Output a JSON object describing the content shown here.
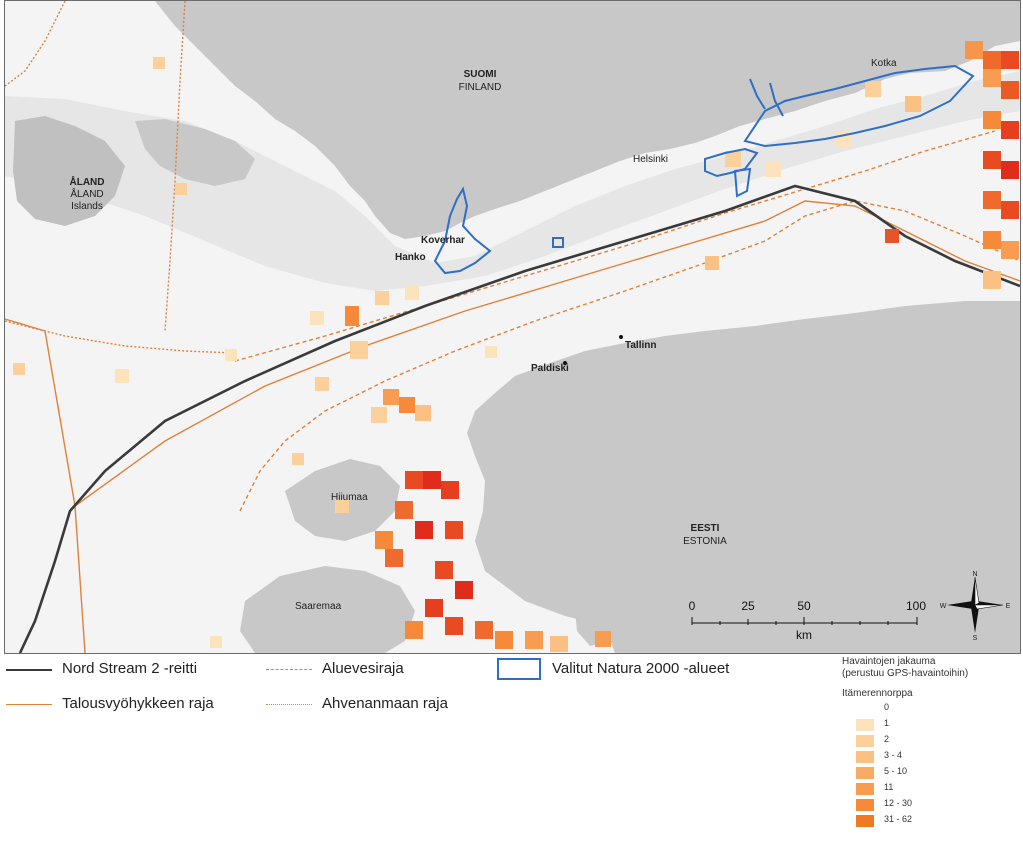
{
  "map": {
    "labels": {
      "suomi": "SUOMI",
      "finland": "FINLAND",
      "aland_sv": "ÅLAND",
      "aland_en": "ÅLAND",
      "aland_islands": "Islands",
      "helsinki": "Helsinki",
      "kotka": "Kotka",
      "koverhar": "Koverhar",
      "hanko": "Hanko",
      "tallinn": "Tallinn",
      "paldiski": "Paldiski",
      "eesti": "EESTI",
      "estonia": "ESTONIA",
      "hiiumaa": "Hiiumaa",
      "saaremaa": "Saaremaa"
    },
    "colors": {
      "sea": "#f4f4f4",
      "land": "#c8c8c8",
      "coast_land": "#b9b9b9",
      "pipeline": "#3a3a3a",
      "eez": "#e0803a",
      "territorial": "#e0803a",
      "aland_border": "#e0803a",
      "natura": "#2e6fc4"
    }
  },
  "scalebar": {
    "ticks": [
      "0",
      "25",
      "50",
      "100"
    ],
    "unit": "km"
  },
  "compass": {
    "n": "N",
    "s": "S",
    "e": "E",
    "w": "W"
  },
  "legend": {
    "nord_stream": "Nord Stream 2 -reitti",
    "eez": "Talousvyöhykkeen raja",
    "territorial": "Aluevesiraja",
    "aland": "Ahvenanmaan raja",
    "natura": "Valitut Natura 2000 -alueet",
    "obs_title_1": "Havaintojen jakauma",
    "obs_title_2": "(perustuu GPS-havaintoihin)",
    "species": "Itämerennorppa",
    "classes": [
      {
        "label": "0",
        "color": "#ffffff"
      },
      {
        "label": "1",
        "color": "#fde3bc"
      },
      {
        "label": "2",
        "color": "#fcd09a"
      },
      {
        "label": "3 - 4",
        "color": "#fbc184"
      },
      {
        "label": "5 - 10",
        "color": "#f9ab63"
      },
      {
        "label": "11",
        "color": "#f79c50"
      },
      {
        "label": "12 - 30",
        "color": "#f58a3a"
      },
      {
        "label": "31 - 62",
        "color": "#f07a22"
      }
    ]
  }
}
